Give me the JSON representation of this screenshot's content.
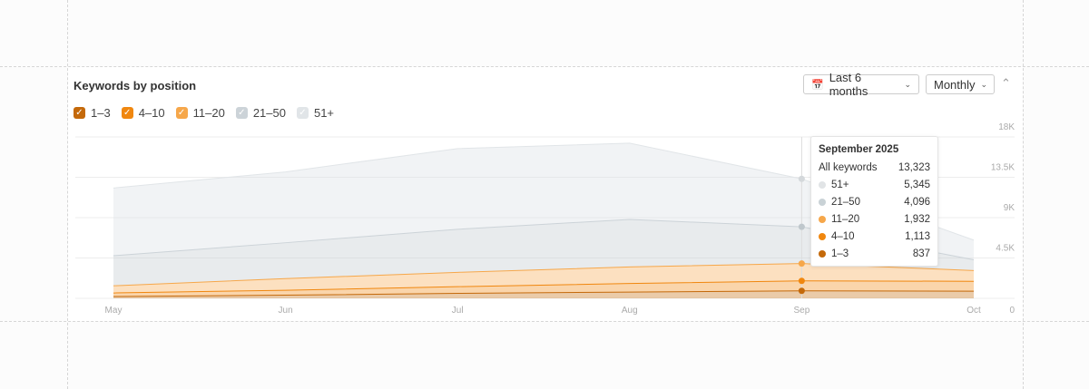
{
  "header": {
    "title": "Keywords by position",
    "range_label": "Last 6 months",
    "interval_label": "Monthly",
    "calendar_icon": "calendar-icon",
    "collapse_icon": "chevron-up-icon"
  },
  "legend": [
    {
      "label": "1–3",
      "color": "#c4690a",
      "checked": true
    },
    {
      "label": "4–10",
      "color": "#f0870f",
      "checked": true
    },
    {
      "label": "11–20",
      "color": "#f6a74a",
      "checked": true
    },
    {
      "label": "21–50",
      "color": "#ccd3d8",
      "checked": true
    },
    {
      "label": "51+",
      "color": "#e1e5e8",
      "checked": true
    }
  ],
  "tooltip": {
    "title": "September 2025",
    "total_label": "All keywords",
    "total_value": "13,323",
    "rows": [
      {
        "label": "51+",
        "value": "5,345",
        "color": "#e1e4e6"
      },
      {
        "label": "21–50",
        "value": "4,096",
        "color": "#c9d2d6"
      },
      {
        "label": "11–20",
        "value": "1,932",
        "color": "#f6a74a"
      },
      {
        "label": "4–10",
        "value": "1,113",
        "color": "#f0870f"
      },
      {
        "label": "1–3",
        "value": "837",
        "color": "#c4690a"
      }
    ]
  },
  "chart_data": {
    "type": "area",
    "stacked": true,
    "categories": [
      "May",
      "Jun",
      "Jul",
      "Aug",
      "Sep",
      "Oct"
    ],
    "yticks": [
      "0",
      "4.5K",
      "9K",
      "13.5K",
      "18K"
    ],
    "ylim": [
      0,
      18000
    ],
    "grid": true,
    "y_axis_side": "right",
    "highlighted_category": "Sep",
    "series": [
      {
        "name": "1–3",
        "values": [
          200,
          350,
          550,
          700,
          837,
          800
        ],
        "color": "#c4690a"
      },
      {
        "name": "4–10",
        "values": [
          400,
          550,
          750,
          950,
          1113,
          1100
        ],
        "color": "#f0870f"
      },
      {
        "name": "11–20",
        "values": [
          800,
          1300,
          1600,
          1850,
          1932,
          1200
        ],
        "color": "#f6a74a"
      },
      {
        "name": "21–50",
        "values": [
          3350,
          4000,
          4800,
          5300,
          4096,
          1200
        ],
        "color": "#ccd3d8"
      },
      {
        "name": "51+",
        "values": [
          7550,
          7900,
          9000,
          8500,
          5345,
          2200
        ],
        "color": "#e1e5e8"
      }
    ]
  }
}
